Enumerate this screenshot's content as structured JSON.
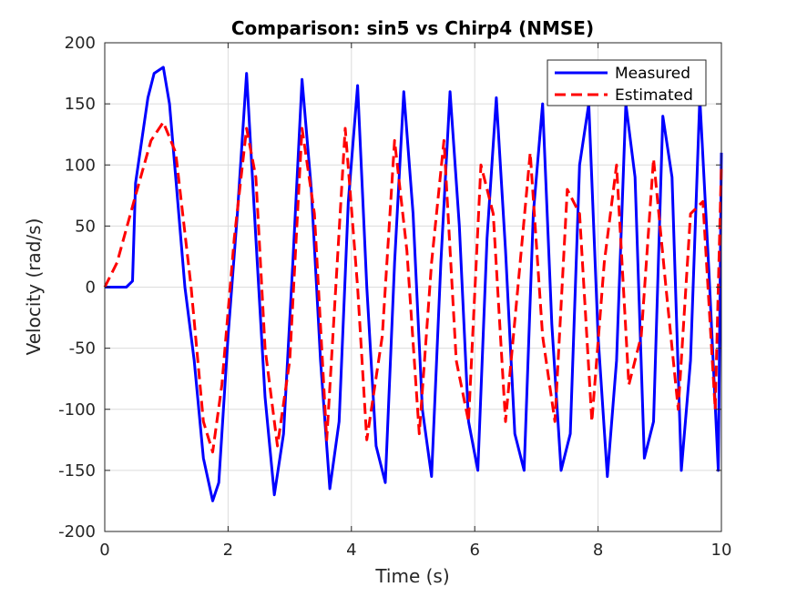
{
  "chart_data": {
    "type": "line",
    "title": "Comparison: sin5 vs Chirp4 (NMSE)",
    "xlabel": "Time (s)",
    "ylabel": "Velocity (rad/s)",
    "xlim": [
      0,
      10
    ],
    "ylim": [
      -200,
      200
    ],
    "xticks": [
      0,
      2,
      4,
      6,
      8,
      10
    ],
    "yticks": [
      -200,
      -150,
      -100,
      -50,
      0,
      50,
      100,
      150,
      200
    ],
    "grid": true,
    "legend_position": "top-right",
    "series": [
      {
        "name": "Measured",
        "color": "#0000ff",
        "style": "solid",
        "x": [
          0,
          0.35,
          0.45,
          0.5,
          0.6,
          0.7,
          0.8,
          0.95,
          1.05,
          1.15,
          1.3,
          1.45,
          1.6,
          1.75,
          1.85,
          2.0,
          2.15,
          2.3,
          2.45,
          2.6,
          2.75,
          2.9,
          3.05,
          3.2,
          3.35,
          3.5,
          3.65,
          3.8,
          3.95,
          4.1,
          4.25,
          4.4,
          4.55,
          4.7,
          4.85,
          5.0,
          5.15,
          5.3,
          5.45,
          5.6,
          5.75,
          5.9,
          6.05,
          6.2,
          6.35,
          6.5,
          6.65,
          6.8,
          6.95,
          7.1,
          7.25,
          7.4,
          7.55,
          7.7,
          7.85,
          8.0,
          8.15,
          8.3,
          8.45,
          8.6,
          8.75,
          8.9,
          9.05,
          9.2,
          9.35,
          9.5,
          9.65,
          9.8,
          9.95,
          10.0
        ],
        "y": [
          0,
          0,
          5,
          85,
          120,
          155,
          175,
          180,
          150,
          90,
          0,
          -60,
          -140,
          -175,
          -160,
          -40,
          60,
          175,
          40,
          -90,
          -170,
          -120,
          20,
          170,
          80,
          -60,
          -165,
          -110,
          70,
          165,
          0,
          -130,
          -160,
          20,
          160,
          60,
          -100,
          -155,
          20,
          160,
          50,
          -110,
          -150,
          40,
          155,
          30,
          -120,
          -150,
          60,
          150,
          -30,
          -150,
          -120,
          100,
          150,
          -40,
          -155,
          -60,
          150,
          90,
          -140,
          -110,
          140,
          90,
          -150,
          -60,
          155,
          10,
          -150,
          110
        ]
      },
      {
        "name": "Estimated",
        "color": "#ff0000",
        "style": "dashed",
        "x": [
          0,
          0.2,
          0.5,
          0.75,
          0.95,
          1.15,
          1.4,
          1.6,
          1.75,
          1.9,
          2.1,
          2.3,
          2.45,
          2.6,
          2.8,
          3.0,
          3.2,
          3.4,
          3.6,
          3.9,
          4.1,
          4.25,
          4.5,
          4.7,
          4.9,
          5.1,
          5.3,
          5.5,
          5.7,
          5.9,
          6.1,
          6.3,
          6.5,
          6.7,
          6.9,
          7.1,
          7.3,
          7.5,
          7.7,
          7.9,
          8.1,
          8.3,
          8.5,
          8.7,
          8.9,
          9.1,
          9.3,
          9.5,
          9.7,
          9.9,
          10.0
        ],
        "y": [
          0,
          20,
          75,
          120,
          135,
          110,
          0,
          -110,
          -135,
          -80,
          40,
          130,
          90,
          -50,
          -130,
          -60,
          130,
          60,
          -125,
          130,
          0,
          -125,
          -40,
          120,
          30,
          -120,
          20,
          120,
          -60,
          -110,
          100,
          60,
          -110,
          0,
          110,
          -40,
          -110,
          80,
          60,
          -110,
          20,
          100,
          -80,
          -40,
          105,
          0,
          -100,
          60,
          70,
          -100,
          100
        ]
      }
    ]
  }
}
